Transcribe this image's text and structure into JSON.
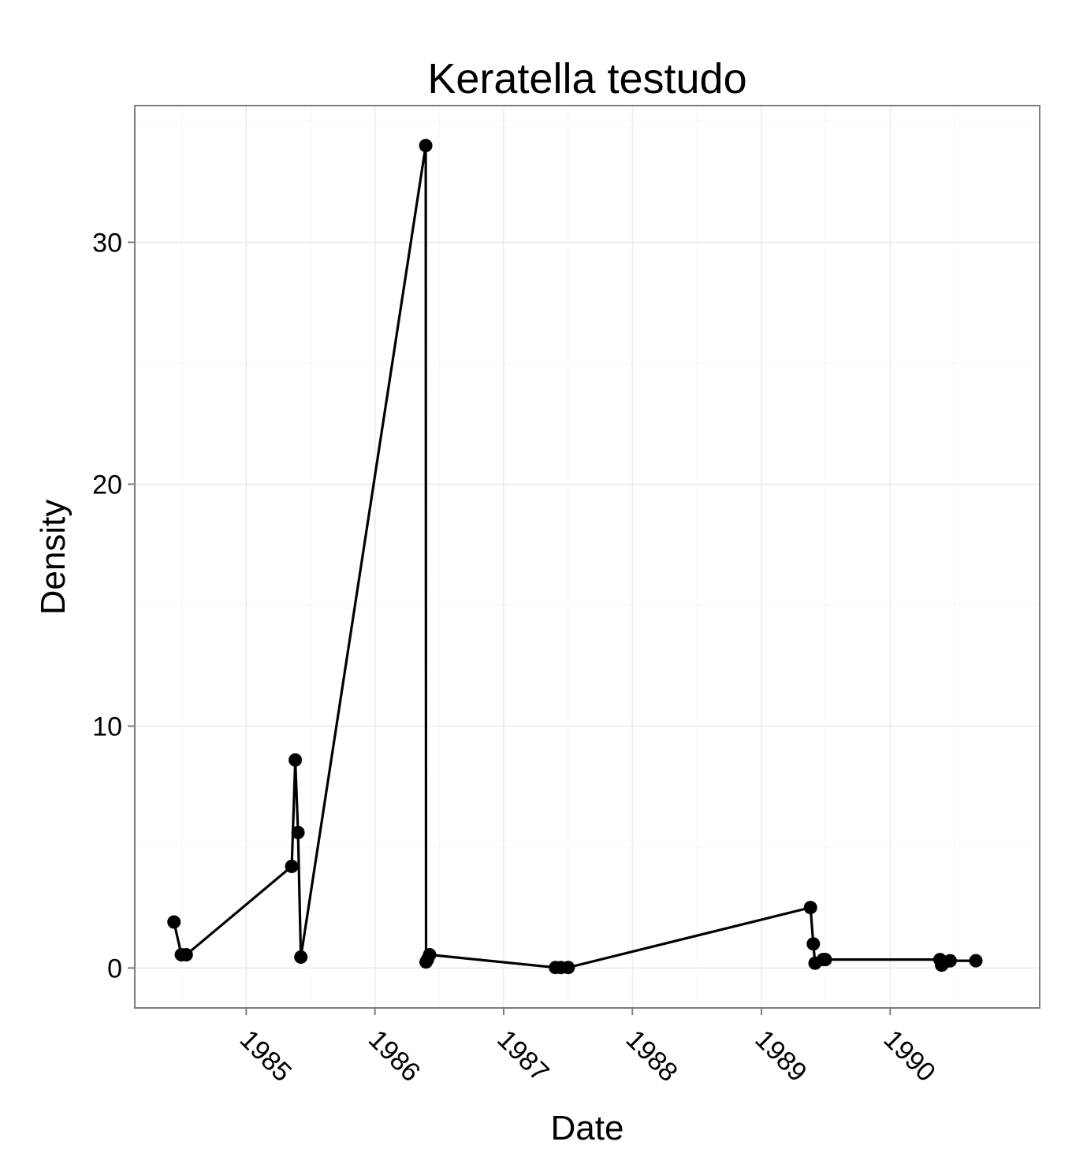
{
  "chart_data": {
    "type": "line",
    "title": "Keratella testudo",
    "xlabel": "Date",
    "ylabel": "Density",
    "x_type": "date",
    "xlim": [
      "1984-02-20",
      "1991-03-01"
    ],
    "ylim": [
      -1.65,
      35.65
    ],
    "x_ticks": [
      "1985-01-01",
      "1986-01-01",
      "1987-01-01",
      "1988-01-01",
      "1989-01-01",
      "1990-01-01"
    ],
    "x_tick_labels": [
      "1985",
      "1986",
      "1987",
      "1988",
      "1989",
      "1990"
    ],
    "y_ticks": [
      0,
      10,
      20,
      30
    ],
    "y_tick_labels": [
      "0",
      "10",
      "20",
      "30"
    ],
    "grid": true,
    "legend": "none",
    "colors": {
      "line": "#000000",
      "point": "#000000",
      "panel_border": "#7f7f7f",
      "grid": "#ececec"
    },
    "series": [
      {
        "points": [
          {
            "x": "1984-06-10",
            "y": 1.9
          },
          {
            "x": "1984-07-01",
            "y": 0.55
          },
          {
            "x": "1984-07-15",
            "y": 0.55
          },
          {
            "x": "1985-05-10",
            "y": 4.2
          },
          {
            "x": "1985-05-20",
            "y": 8.6
          },
          {
            "x": "1985-05-28",
            "y": 5.6
          },
          {
            "x": "1985-06-05",
            "y": 0.45
          },
          {
            "x": "1986-05-25",
            "y": 34.0
          },
          {
            "x": "1986-05-26",
            "y": 0.25
          },
          {
            "x": "1986-05-30",
            "y": 0.35
          },
          {
            "x": "1986-06-05",
            "y": 0.55
          },
          {
            "x": "1987-05-28",
            "y": 0.02
          },
          {
            "x": "1987-06-12",
            "y": 0.02
          },
          {
            "x": "1987-07-03",
            "y": 0.02
          },
          {
            "x": "1989-05-20",
            "y": 2.5
          },
          {
            "x": "1989-05-28",
            "y": 1.0
          },
          {
            "x": "1989-06-02",
            "y": 0.2
          },
          {
            "x": "1989-06-25",
            "y": 0.35
          },
          {
            "x": "1989-07-01",
            "y": 0.35
          },
          {
            "x": "1990-05-22",
            "y": 0.35
          },
          {
            "x": "1990-05-27",
            "y": 0.12
          },
          {
            "x": "1990-06-05",
            "y": 0.25
          },
          {
            "x": "1990-06-20",
            "y": 0.3
          },
          {
            "x": "1990-09-01",
            "y": 0.3
          }
        ]
      }
    ]
  }
}
